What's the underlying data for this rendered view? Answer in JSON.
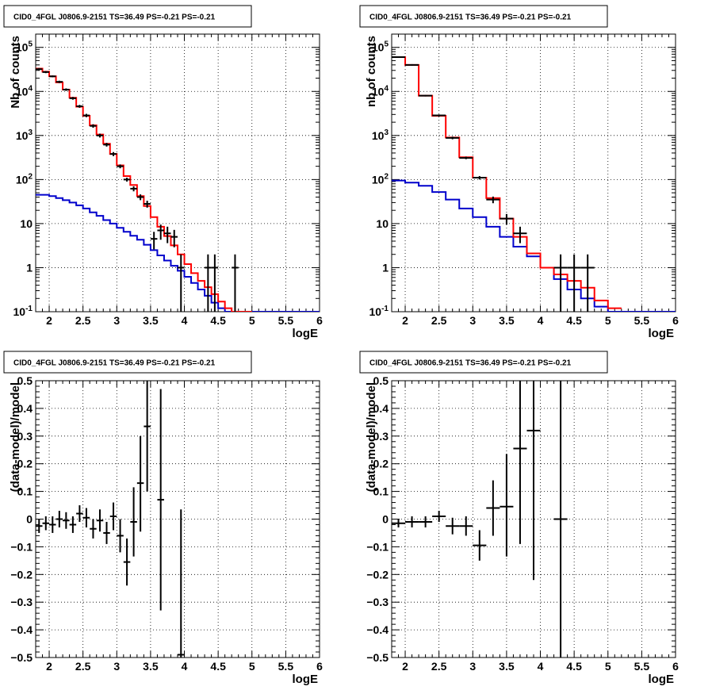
{
  "chart_data": [
    {
      "type": "line",
      "title": "CID0_4FGL J0806.9-2151 TS=36.49 PS=-0.21 PS=-0.21",
      "xlabel": "logE",
      "ylabel": "Nb of counts",
      "xlim": [
        1.8,
        6.0
      ],
      "ylim": [
        0.1,
        200000
      ],
      "yscale": "log",
      "grid": true,
      "x_ticks": [
        "2",
        "2.5",
        "3",
        "3.5",
        "4",
        "4.5",
        "5",
        "5.5",
        "6"
      ],
      "y_ticks": [
        "10^-1",
        "1",
        "10",
        "10^2",
        "10^3",
        "10^4",
        "10^5"
      ],
      "series": [
        {
          "color": "#0000cc",
          "style": "step",
          "edges": [
            1.8,
            1.9,
            2.0,
            2.1,
            2.2,
            2.3,
            2.4,
            2.5,
            2.6,
            2.7,
            2.8,
            2.9,
            3.0,
            3.1,
            3.2,
            3.3,
            3.4,
            3.5,
            3.6,
            3.7,
            3.8,
            3.9,
            4.0,
            4.1,
            4.2,
            4.3,
            4.4,
            4.5,
            4.6,
            4.7,
            4.8,
            4.9,
            5.0,
            5.1,
            5.2,
            5.3,
            5.4,
            5.5,
            5.6,
            5.7,
            5.8,
            5.9,
            6.0
          ],
          "values": [
            45,
            45,
            42,
            38,
            34,
            30,
            26,
            22,
            18,
            15,
            12,
            10,
            8,
            6.5,
            5.3,
            4.3,
            3.3,
            2.5,
            1.9,
            1.45,
            1.1,
            0.85,
            0.62,
            0.45,
            0.32,
            0.23,
            0.16,
            0.12,
            0.1,
            0.1,
            0.1,
            0.1,
            0.1,
            0.1,
            0.1,
            0.1,
            0.1,
            0.1,
            0.1,
            0.1,
            0.1,
            0.1
          ]
        },
        {
          "color": "#ff0000",
          "style": "step",
          "edges": [
            1.8,
            1.9,
            2.0,
            2.1,
            2.2,
            2.3,
            2.4,
            2.5,
            2.6,
            2.7,
            2.8,
            2.9,
            3.0,
            3.1,
            3.2,
            3.3,
            3.4,
            3.5,
            3.6,
            3.7,
            3.8,
            3.9,
            4.0,
            4.1,
            4.2,
            4.3,
            4.4,
            4.5,
            4.6,
            4.7,
            4.8,
            4.9,
            5.0
          ],
          "values": [
            33000,
            28000,
            22000,
            16000,
            11000,
            7200,
            4500,
            2800,
            1700,
            1050,
            650,
            380,
            210,
            120,
            75,
            42,
            25,
            14,
            8.5,
            5.2,
            3.2,
            2.0,
            1.2,
            0.75,
            0.5,
            0.36,
            0.25,
            0.17,
            0.12,
            0.1,
            0.1,
            0.1,
            0.1
          ]
        }
      ],
      "points": [
        {
          "x": 1.85,
          "y": 32000,
          "ylo": 30000,
          "yhi": 34000,
          "xerr": 0.05
        },
        {
          "x": 1.95,
          "y": 27500,
          "ylo": 26000,
          "yhi": 29000,
          "xerr": 0.05
        },
        {
          "x": 2.05,
          "y": 22000,
          "ylo": 21000,
          "yhi": 23000,
          "xerr": 0.05
        },
        {
          "x": 2.15,
          "y": 16500,
          "ylo": 15500,
          "yhi": 17500,
          "xerr": 0.05
        },
        {
          "x": 2.25,
          "y": 11000,
          "ylo": 10300,
          "yhi": 11700,
          "xerr": 0.05
        },
        {
          "x": 2.35,
          "y": 7000,
          "ylo": 6500,
          "yhi": 7500,
          "xerr": 0.05
        },
        {
          "x": 2.45,
          "y": 4600,
          "ylo": 4250,
          "yhi": 4950,
          "xerr": 0.05
        },
        {
          "x": 2.55,
          "y": 2850,
          "ylo": 2600,
          "yhi": 3100,
          "xerr": 0.05
        },
        {
          "x": 2.65,
          "y": 1650,
          "ylo": 1500,
          "yhi": 1800,
          "xerr": 0.05
        },
        {
          "x": 2.75,
          "y": 1000,
          "ylo": 900,
          "yhi": 1100,
          "xerr": 0.05
        },
        {
          "x": 2.85,
          "y": 620,
          "ylo": 560,
          "yhi": 680,
          "xerr": 0.05
        },
        {
          "x": 2.95,
          "y": 380,
          "ylo": 340,
          "yhi": 420,
          "xerr": 0.05
        },
        {
          "x": 3.05,
          "y": 200,
          "ylo": 180,
          "yhi": 220,
          "xerr": 0.05
        },
        {
          "x": 3.15,
          "y": 100,
          "ylo": 90,
          "yhi": 110,
          "xerr": 0.05
        },
        {
          "x": 3.25,
          "y": 62,
          "ylo": 54,
          "yhi": 70,
          "xerr": 0.05
        },
        {
          "x": 3.35,
          "y": 40,
          "ylo": 34,
          "yhi": 46,
          "xerr": 0.05
        },
        {
          "x": 3.45,
          "y": 28,
          "ylo": 23,
          "yhi": 33,
          "xerr": 0.05
        },
        {
          "x": 3.55,
          "y": 4.5,
          "ylo": 2.6,
          "yhi": 6.5,
          "xerr": 0.05
        },
        {
          "x": 3.65,
          "y": 7,
          "ylo": 4.3,
          "yhi": 9.5,
          "xerr": 0.05
        },
        {
          "x": 3.75,
          "y": 6,
          "ylo": 3.6,
          "yhi": 8.5,
          "xerr": 0.05
        },
        {
          "x": 3.85,
          "y": 5,
          "ylo": 2.9,
          "yhi": 7.2,
          "xerr": 0.05
        },
        {
          "x": 3.95,
          "y": 1,
          "ylo": 0.1,
          "yhi": 2,
          "xerr": 0.05
        },
        {
          "x": 4.35,
          "y": 1,
          "ylo": 0.1,
          "yhi": 2,
          "xerr": 0.05
        },
        {
          "x": 4.45,
          "y": 1,
          "ylo": 0.1,
          "yhi": 2,
          "xerr": 0.05
        },
        {
          "x": 4.75,
          "y": 1,
          "ylo": 0.1,
          "yhi": 2,
          "xerr": 0.05
        }
      ]
    },
    {
      "type": "line",
      "title": "CID0_4FGL J0806.9-2151 TS=36.49 PS=-0.21 PS=-0.21",
      "xlabel": "logE",
      "ylabel": "nb of counts",
      "xlim": [
        1.8,
        6.0
      ],
      "ylim": [
        0.1,
        200000
      ],
      "yscale": "log",
      "grid": true,
      "x_ticks": [
        "2",
        "2.5",
        "3",
        "3.5",
        "4",
        "4.5",
        "5",
        "5.5",
        "6"
      ],
      "y_ticks": [
        "10^-1",
        "1",
        "10",
        "10^2",
        "10^3",
        "10^4",
        "10^5"
      ],
      "series": [
        {
          "color": "#0000cc",
          "style": "step",
          "edges": [
            1.8,
            2.0,
            2.2,
            2.4,
            2.6,
            2.8,
            3.0,
            3.2,
            3.4,
            3.6,
            3.8,
            4.0,
            4.2,
            4.4,
            4.6,
            4.8,
            5.0,
            5.2,
            5.4,
            5.6,
            5.8,
            6.0
          ],
          "values": [
            95,
            85,
            72,
            52,
            35,
            22,
            14,
            8.5,
            5,
            3,
            1.8,
            1.0,
            0.55,
            0.32,
            0.2,
            0.13,
            0.1,
            0.1,
            0.1,
            0.1,
            0.1
          ]
        },
        {
          "color": "#ff0000",
          "style": "step",
          "edges": [
            1.8,
            2.0,
            2.2,
            2.4,
            2.6,
            2.8,
            3.0,
            3.2,
            3.4,
            3.6,
            3.8,
            4.0,
            4.2,
            4.4,
            4.6,
            4.8,
            5.0,
            5.2
          ],
          "values": [
            60000,
            40000,
            8000,
            2800,
            900,
            320,
            110,
            38,
            13,
            5,
            2.1,
            1.0,
            0.7,
            0.5,
            0.35,
            0.18,
            0.12
          ]
        }
      ],
      "points": [
        {
          "x": 1.9,
          "y": 60000,
          "ylo": 58000,
          "yhi": 62000,
          "xerr": 0.1
        },
        {
          "x": 2.1,
          "y": 40000,
          "ylo": 38500,
          "yhi": 41500,
          "xerr": 0.1
        },
        {
          "x": 2.3,
          "y": 8000,
          "ylo": 7700,
          "yhi": 8300,
          "xerr": 0.1
        },
        {
          "x": 2.5,
          "y": 2850,
          "ylo": 2700,
          "yhi": 3000,
          "xerr": 0.1
        },
        {
          "x": 2.7,
          "y": 880,
          "ylo": 820,
          "yhi": 940,
          "xerr": 0.1
        },
        {
          "x": 2.9,
          "y": 310,
          "ylo": 290,
          "yhi": 330,
          "xerr": 0.1
        },
        {
          "x": 3.1,
          "y": 110,
          "ylo": 100,
          "yhi": 120,
          "xerr": 0.1
        },
        {
          "x": 3.3,
          "y": 35,
          "ylo": 29,
          "yhi": 41,
          "xerr": 0.1
        },
        {
          "x": 3.5,
          "y": 13,
          "ylo": 9.5,
          "yhi": 16.5,
          "xerr": 0.1
        },
        {
          "x": 3.7,
          "y": 6,
          "ylo": 3.6,
          "yhi": 8.5,
          "xerr": 0.1
        },
        {
          "x": 4.3,
          "y": 1,
          "ylo": 0.1,
          "yhi": 2,
          "xerr": 0.1
        },
        {
          "x": 4.5,
          "y": 1,
          "ylo": 0.1,
          "yhi": 2,
          "xerr": 0.1
        },
        {
          "x": 4.7,
          "y": 1,
          "ylo": 0.1,
          "yhi": 2,
          "xerr": 0.1
        }
      ]
    },
    {
      "type": "scatter",
      "title": "CID0_4FGL J0806.9-2151 TS=36.49 PS=-0.21 PS=-0.21",
      "xlabel": "logE",
      "ylabel": "(data-model)/model",
      "xlim": [
        1.8,
        6.0
      ],
      "ylim": [
        -0.5,
        0.5
      ],
      "grid": true,
      "x_ticks": [
        "2",
        "2.5",
        "3",
        "3.5",
        "4",
        "4.5",
        "5",
        "5.5",
        "6"
      ],
      "y_ticks": [
        "-0.5",
        "-0.4",
        "-0.3",
        "-0.2",
        "-0.1",
        "0",
        "0.1",
        "0.2",
        "0.3",
        "0.4",
        "0.5"
      ],
      "points": [
        {
          "x": 1.85,
          "y": -0.025,
          "ylo": -0.05,
          "yhi": 0.0,
          "xerr": 0.05
        },
        {
          "x": 1.95,
          "y": -0.015,
          "ylo": -0.04,
          "yhi": 0.01,
          "xerr": 0.05
        },
        {
          "x": 2.05,
          "y": -0.02,
          "ylo": -0.05,
          "yhi": 0.01,
          "xerr": 0.05
        },
        {
          "x": 2.15,
          "y": 0.0,
          "ylo": -0.03,
          "yhi": 0.03,
          "xerr": 0.05
        },
        {
          "x": 2.25,
          "y": -0.005,
          "ylo": -0.035,
          "yhi": 0.025,
          "xerr": 0.05
        },
        {
          "x": 2.35,
          "y": -0.02,
          "ylo": -0.05,
          "yhi": 0.01,
          "xerr": 0.05
        },
        {
          "x": 2.45,
          "y": 0.02,
          "ylo": -0.01,
          "yhi": 0.05,
          "xerr": 0.05
        },
        {
          "x": 2.55,
          "y": 0.005,
          "ylo": -0.03,
          "yhi": 0.04,
          "xerr": 0.05
        },
        {
          "x": 2.65,
          "y": -0.035,
          "ylo": -0.07,
          "yhi": 0.0,
          "xerr": 0.05
        },
        {
          "x": 2.75,
          "y": -0.005,
          "ylo": -0.045,
          "yhi": 0.035,
          "xerr": 0.05
        },
        {
          "x": 2.85,
          "y": -0.05,
          "ylo": -0.09,
          "yhi": -0.01,
          "xerr": 0.05
        },
        {
          "x": 2.95,
          "y": 0.01,
          "ylo": -0.04,
          "yhi": 0.06,
          "xerr": 0.05
        },
        {
          "x": 3.05,
          "y": -0.06,
          "ylo": -0.12,
          "yhi": 0.0,
          "xerr": 0.05
        },
        {
          "x": 3.15,
          "y": -0.155,
          "ylo": -0.24,
          "yhi": -0.07,
          "xerr": 0.05
        },
        {
          "x": 3.25,
          "y": -0.01,
          "ylo": -0.135,
          "yhi": 0.115,
          "xerr": 0.05
        },
        {
          "x": 3.35,
          "y": 0.13,
          "ylo": -0.045,
          "yhi": 0.3,
          "xerr": 0.05
        },
        {
          "x": 3.45,
          "y": 0.335,
          "ylo": 0.1,
          "yhi": 0.5,
          "xerr": 0.05
        },
        {
          "x": 3.65,
          "y": 0.07,
          "ylo": -0.33,
          "yhi": 0.47,
          "xerr": 0.05
        },
        {
          "x": 3.95,
          "y": -0.49,
          "ylo": -0.5,
          "yhi": 0.035,
          "xerr": 0.05
        }
      ]
    },
    {
      "type": "scatter",
      "title": "CID0_4FGL J0806.9-2151 TS=36.49 PS=-0.21 PS=-0.21",
      "xlabel": "logE",
      "ylabel": "(data-model)/model",
      "xlim": [
        1.8,
        6.0
      ],
      "ylim": [
        -0.5,
        0.5
      ],
      "grid": true,
      "x_ticks": [
        "2",
        "2.5",
        "3",
        "3.5",
        "4",
        "4.5",
        "5",
        "5.5",
        "6"
      ],
      "y_ticks": [
        "-0.5",
        "-0.4",
        "-0.3",
        "-0.2",
        "-0.1",
        "0",
        "0.1",
        "0.2",
        "0.3",
        "0.4",
        "0.5"
      ],
      "points": [
        {
          "x": 1.9,
          "y": -0.015,
          "ylo": -0.03,
          "yhi": 0.0,
          "xerr": 0.1
        },
        {
          "x": 2.1,
          "y": -0.01,
          "ylo": -0.03,
          "yhi": 0.01,
          "xerr": 0.1
        },
        {
          "x": 2.3,
          "y": -0.01,
          "ylo": -0.03,
          "yhi": 0.01,
          "xerr": 0.1
        },
        {
          "x": 2.5,
          "y": 0.01,
          "ylo": -0.01,
          "yhi": 0.03,
          "xerr": 0.1
        },
        {
          "x": 2.7,
          "y": -0.025,
          "ylo": -0.055,
          "yhi": 0.005,
          "xerr": 0.1
        },
        {
          "x": 2.9,
          "y": -0.025,
          "ylo": -0.06,
          "yhi": 0.01,
          "xerr": 0.1
        },
        {
          "x": 3.1,
          "y": -0.095,
          "ylo": -0.15,
          "yhi": -0.04,
          "xerr": 0.1
        },
        {
          "x": 3.3,
          "y": 0.04,
          "ylo": -0.06,
          "yhi": 0.14,
          "xerr": 0.1
        },
        {
          "x": 3.5,
          "y": 0.045,
          "ylo": -0.135,
          "yhi": 0.235,
          "xerr": 0.1
        },
        {
          "x": 3.7,
          "y": 0.255,
          "ylo": -0.09,
          "yhi": 0.5,
          "xerr": 0.1
        },
        {
          "x": 3.9,
          "y": 0.32,
          "ylo": -0.22,
          "yhi": 0.5,
          "xerr": 0.1
        },
        {
          "x": 4.3,
          "y": 0.0,
          "ylo": -0.5,
          "yhi": 0.5,
          "xerr": 0.1
        }
      ]
    }
  ]
}
